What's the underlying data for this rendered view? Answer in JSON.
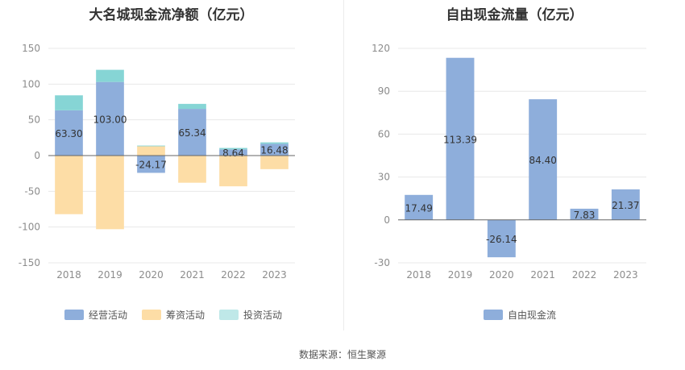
{
  "source": "数据来源：恒生聚源",
  "chart_data": [
    {
      "type": "bar",
      "stacked": true,
      "title": "大名城现金流净额（亿元）",
      "categories": [
        "2018",
        "2019",
        "2020",
        "2021",
        "2022",
        "2023"
      ],
      "series": [
        {
          "name": "经营活动",
          "color": "#8eaedb",
          "values": [
            63.3,
            103.0,
            -24.17,
            65.34,
            8.64,
            16.48
          ]
        },
        {
          "name": "筹资活动",
          "color": "#fddda6",
          "values": [
            -82,
            -103,
            13,
            -38,
            -43,
            -19
          ]
        },
        {
          "name": "投资活动",
          "color": "#86d5d5",
          "values": [
            21,
            17,
            1,
            7,
            2,
            2
          ]
        }
      ],
      "data_labels": [
        "63.30",
        "103.00",
        "-24.17",
        "65.34",
        "8.64",
        "16.48"
      ],
      "ylim": [
        -150,
        150
      ],
      "yticks": [
        "150",
        "100",
        "50",
        "0",
        "-50",
        "-100",
        "-150"
      ],
      "legend_position": "bottom",
      "grid": true
    },
    {
      "type": "bar",
      "title": "自由现金流量（亿元）",
      "categories": [
        "2018",
        "2019",
        "2020",
        "2021",
        "2022",
        "2023"
      ],
      "series": [
        {
          "name": "自由现金流",
          "color": "#8eaedb",
          "values": [
            17.49,
            113.39,
            -26.14,
            84.4,
            7.83,
            21.37
          ]
        }
      ],
      "data_labels": [
        "17.49",
        "113.39",
        "-26.14",
        "84.40",
        "7.83",
        "21.37"
      ],
      "ylim": [
        -30,
        120
      ],
      "yticks": [
        "120",
        "90",
        "60",
        "30",
        "0",
        "-30"
      ],
      "legend_position": "bottom",
      "grid": true
    }
  ]
}
